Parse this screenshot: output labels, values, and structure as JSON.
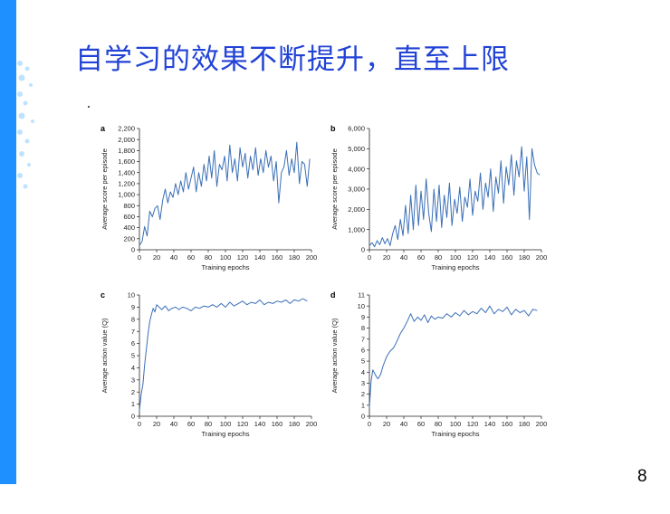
{
  "slide": {
    "title": "自学习的效果不断提升，直至上限",
    "page_number": "8",
    "accent_color": "#1e90ff",
    "title_color": "#2243d6",
    "line_color": "#3a6fb7"
  },
  "chart_data": [
    {
      "type": "line",
      "panel": "a",
      "xlabel": "Training epochs",
      "ylabel": "Average score per episode",
      "xlim": [
        0,
        200
      ],
      "ylim": [
        0,
        2200
      ],
      "xticks": [
        0,
        20,
        40,
        60,
        80,
        100,
        120,
        140,
        160,
        180,
        200
      ],
      "yticks": [
        0,
        200,
        400,
        600,
        800,
        1000,
        1200,
        1400,
        1600,
        1800,
        2000,
        2200
      ],
      "ytick_labels": [
        "0",
        "200",
        "400",
        "600",
        "800",
        "1,000",
        "1,200",
        "1,400",
        "1,600",
        "1,800",
        "2,000",
        "2,200"
      ],
      "x": [
        0,
        3,
        6,
        9,
        12,
        15,
        18,
        21,
        24,
        27,
        30,
        33,
        36,
        39,
        42,
        45,
        48,
        51,
        54,
        57,
        60,
        63,
        66,
        69,
        72,
        75,
        78,
        81,
        84,
        87,
        90,
        93,
        96,
        99,
        102,
        105,
        108,
        111,
        114,
        117,
        120,
        123,
        126,
        129,
        132,
        135,
        138,
        141,
        144,
        147,
        150,
        153,
        156,
        159,
        162,
        165,
        168,
        171,
        174,
        177,
        180,
        183,
        186,
        189,
        192,
        195,
        198
      ],
      "y": [
        80,
        150,
        420,
        250,
        700,
        600,
        750,
        800,
        550,
        900,
        1100,
        850,
        1050,
        950,
        1200,
        1000,
        1250,
        1050,
        1400,
        1100,
        1300,
        1500,
        1050,
        1400,
        1150,
        1550,
        1250,
        1700,
        1300,
        1800,
        1150,
        1550,
        1450,
        1700,
        1250,
        1900,
        1400,
        1650,
        1250,
        1850,
        1500,
        1750,
        1300,
        1700,
        1450,
        1850,
        1350,
        1650,
        1400,
        1800,
        1500,
        1700,
        1250,
        1600,
        850,
        1400,
        1500,
        1800,
        1350,
        1650,
        1400,
        1950,
        1200,
        1600,
        1550,
        1150,
        1650
      ]
    },
    {
      "type": "line",
      "panel": "b",
      "xlabel": "Training epochs",
      "ylabel": "Average score per episode",
      "xlim": [
        0,
        200
      ],
      "ylim": [
        0,
        6000
      ],
      "xticks": [
        0,
        20,
        40,
        60,
        80,
        100,
        120,
        140,
        160,
        180,
        200
      ],
      "yticks": [
        0,
        1000,
        2000,
        3000,
        4000,
        5000,
        6000
      ],
      "ytick_labels": [
        "0",
        "1,000",
        "2,000",
        "3,000",
        "4,000",
        "5,000",
        "6,000"
      ],
      "x": [
        0,
        3,
        6,
        9,
        12,
        15,
        18,
        21,
        24,
        27,
        30,
        33,
        36,
        39,
        42,
        45,
        48,
        51,
        54,
        57,
        60,
        63,
        66,
        69,
        72,
        75,
        78,
        81,
        84,
        87,
        90,
        93,
        96,
        99,
        102,
        105,
        108,
        111,
        114,
        117,
        120,
        123,
        126,
        129,
        132,
        135,
        138,
        141,
        144,
        147,
        150,
        153,
        156,
        159,
        162,
        165,
        168,
        171,
        174,
        177,
        180,
        183,
        186,
        189,
        192,
        195,
        198
      ],
      "y": [
        200,
        350,
        150,
        450,
        250,
        600,
        300,
        550,
        200,
        800,
        1200,
        500,
        1500,
        700,
        2200,
        800,
        2700,
        1000,
        3200,
        1200,
        2900,
        1500,
        3500,
        1800,
        900,
        3000,
        1400,
        3200,
        1100,
        2700,
        1600,
        3300,
        1200,
        2500,
        1800,
        3100,
        1400,
        2600,
        2100,
        3500,
        1700,
        2900,
        2400,
        3800,
        2000,
        3300,
        2600,
        4000,
        1900,
        3600,
        2800,
        4400,
        2300,
        4100,
        3200,
        4700,
        2700,
        4400,
        3600,
        5100,
        2900,
        4600,
        1500,
        5000,
        4200,
        3800,
        3700
      ]
    },
    {
      "type": "line",
      "panel": "c",
      "xlabel": "Training epochs",
      "ylabel": "Average action value (Q)",
      "xlim": [
        0,
        200
      ],
      "ylim": [
        0,
        10
      ],
      "xticks": [
        0,
        20,
        40,
        60,
        80,
        100,
        120,
        140,
        160,
        180,
        200
      ],
      "yticks": [
        0,
        1,
        2,
        3,
        4,
        5,
        6,
        7,
        8,
        9,
        10
      ],
      "ytick_labels": [
        "0",
        "1",
        "2",
        "3",
        "4",
        "5",
        "6",
        "7",
        "8",
        "9",
        "10"
      ],
      "x": [
        0,
        2,
        4,
        6,
        8,
        10,
        12,
        14,
        16,
        18,
        20,
        23,
        26,
        30,
        34,
        38,
        42,
        46,
        50,
        55,
        60,
        65,
        70,
        75,
        80,
        85,
        90,
        95,
        100,
        105,
        110,
        115,
        120,
        125,
        130,
        135,
        140,
        145,
        150,
        155,
        160,
        165,
        170,
        175,
        180,
        185,
        190,
        195
      ],
      "y": [
        0.5,
        1.8,
        2.6,
        4.2,
        5.5,
        6.8,
        7.8,
        8.4,
        8.9,
        8.6,
        9.2,
        9.0,
        8.8,
        9.1,
        8.7,
        8.9,
        9.0,
        8.8,
        9.0,
        8.9,
        8.7,
        9.0,
        8.9,
        9.1,
        9.0,
        9.2,
        9.0,
        9.3,
        9.0,
        9.4,
        9.1,
        9.3,
        9.5,
        9.2,
        9.4,
        9.3,
        9.6,
        9.2,
        9.4,
        9.3,
        9.5,
        9.4,
        9.6,
        9.3,
        9.6,
        9.5,
        9.7,
        9.5
      ]
    },
    {
      "type": "line",
      "panel": "d",
      "xlabel": "Training epochs",
      "ylabel": "Average action value (Q)",
      "xlim": [
        0,
        200
      ],
      "ylim": [
        0,
        11
      ],
      "xticks": [
        0,
        20,
        40,
        60,
        80,
        100,
        120,
        140,
        160,
        180,
        200
      ],
      "yticks": [
        0,
        1,
        2,
        3,
        4,
        5,
        6,
        7,
        8,
        9,
        10,
        11
      ],
      "ytick_labels": [
        "0",
        "1",
        "2",
        "3",
        "4",
        "5",
        "6",
        "7",
        "8",
        "9",
        "10",
        "11"
      ],
      "x": [
        0,
        2,
        4,
        6,
        8,
        10,
        13,
        16,
        20,
        24,
        28,
        32,
        36,
        40,
        44,
        48,
        52,
        56,
        60,
        64,
        68,
        72,
        76,
        80,
        85,
        90,
        95,
        100,
        105,
        110,
        115,
        120,
        125,
        130,
        135,
        140,
        145,
        150,
        155,
        160,
        165,
        170,
        175,
        180,
        185,
        190,
        195
      ],
      "y": [
        0.8,
        3.2,
        4.2,
        3.9,
        3.6,
        3.4,
        3.8,
        4.6,
        5.4,
        5.9,
        6.2,
        6.8,
        7.5,
        8.0,
        8.6,
        9.3,
        8.6,
        9.0,
        8.7,
        9.2,
        8.5,
        9.1,
        8.8,
        9.0,
        8.9,
        9.3,
        9.0,
        9.4,
        9.1,
        9.6,
        9.2,
        9.5,
        9.3,
        9.8,
        9.4,
        10.0,
        9.3,
        9.7,
        9.5,
        9.9,
        9.2,
        9.7,
        9.4,
        9.6,
        9.1,
        9.7,
        9.6
      ]
    }
  ]
}
